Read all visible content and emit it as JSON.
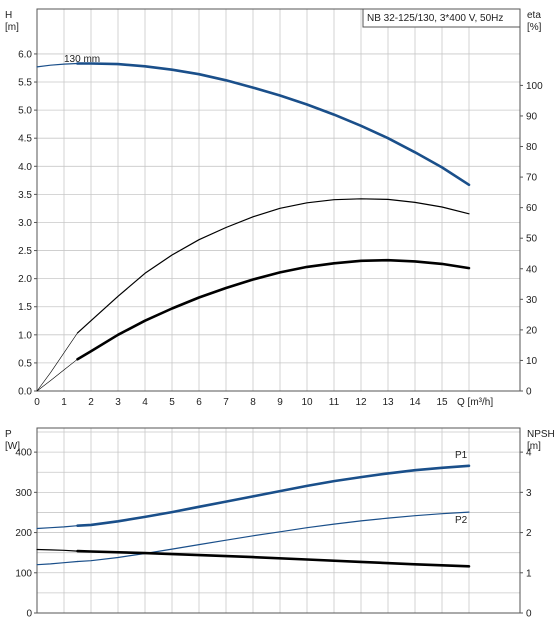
{
  "chart_data": [
    {
      "type": "line",
      "title": "NB 32-125/130, 3*400 V, 50Hz",
      "xlabel": "Q [m³/h]",
      "ylabel": "H [m]",
      "y2label": "eta [%]",
      "ylabel_parts": [
        "H",
        "[m]"
      ],
      "y2label_parts": [
        "eta",
        "[%]"
      ],
      "xlim": [
        0,
        17
      ],
      "ylim": [
        0,
        6.8
      ],
      "y2lim": [
        0,
        125
      ],
      "xticks": [
        "0",
        "1",
        "2",
        "3",
        "4",
        "5",
        "6",
        "7",
        "8",
        "9",
        "10",
        "11",
        "12",
        "13",
        "14",
        "15"
      ],
      "yticks": [
        "0.0",
        "0.5",
        "1.0",
        "1.5",
        "2.0",
        "2.5",
        "3.0",
        "3.5",
        "4.0",
        "4.5",
        "5.0",
        "5.5",
        "6.0"
      ],
      "y2ticks": [
        "0",
        "10",
        "20",
        "30",
        "40",
        "50",
        "60",
        "70",
        "80",
        "90",
        "100"
      ],
      "grid": true,
      "annotations": [
        {
          "text": "130 mm",
          "x": 1.0,
          "y": 5.82
        }
      ],
      "series": [
        {
          "axis": "y",
          "color": "#1a4f8a",
          "style": "thick",
          "x": [
            1.5,
            2,
            3,
            4,
            5,
            6,
            7,
            8,
            9,
            10,
            11,
            12,
            13,
            14,
            15,
            16
          ],
          "y": [
            5.83,
            5.83,
            5.82,
            5.78,
            5.72,
            5.64,
            5.53,
            5.4,
            5.26,
            5.1,
            4.92,
            4.72,
            4.5,
            4.25,
            3.98,
            3.67
          ]
        },
        {
          "axis": "y",
          "color": "#1a4f8a",
          "style": "thin",
          "x": [
            0,
            0.5,
            1,
            1.5
          ],
          "y": [
            5.77,
            5.8,
            5.82,
            5.83
          ]
        },
        {
          "axis": "y2",
          "color": "#000000",
          "style": "thin",
          "x": [
            1.5,
            2,
            3,
            4,
            5,
            6,
            7,
            8,
            9,
            10,
            11,
            12,
            13,
            14,
            15,
            16
          ],
          "y": [
            19,
            23,
            31,
            38.5,
            44.5,
            49.5,
            53.5,
            57,
            59.8,
            61.6,
            62.6,
            62.9,
            62.7,
            61.7,
            60.2,
            58
          ]
        },
        {
          "axis": "y2",
          "color": "#000000",
          "style": "hair",
          "x": [
            0,
            0.5,
            1,
            1.5
          ],
          "y": [
            0,
            6,
            12.5,
            19
          ]
        },
        {
          "axis": "y2",
          "color": "#000000",
          "style": "thick",
          "x": [
            1.5,
            2,
            3,
            4,
            5,
            6,
            7,
            8,
            9,
            10,
            11,
            12,
            13,
            14,
            15,
            16
          ],
          "y": [
            10.4,
            13,
            18.4,
            23,
            27,
            30.6,
            33.7,
            36.5,
            38.8,
            40.6,
            41.8,
            42.6,
            42.8,
            42.4,
            41.6,
            40.2
          ]
        },
        {
          "axis": "y2",
          "color": "#000000",
          "style": "hair",
          "x": [
            0,
            0.5,
            1,
            1.5
          ],
          "y": [
            0,
            3.4,
            6.9,
            10.4
          ]
        }
      ]
    },
    {
      "type": "line",
      "xlabel": "",
      "ylabel": "P [W]",
      "y2label": "NPSH [m]",
      "ylabel_parts": [
        "P",
        "[W]"
      ],
      "y2label_parts": [
        "NPSH",
        "[m]"
      ],
      "xlim": [
        0,
        17
      ],
      "ylim": [
        0,
        460
      ],
      "y2lim": [
        0,
        4.6
      ],
      "yticks": [
        "0",
        "100",
        "200",
        "300",
        "400"
      ],
      "y2ticks": [
        "0",
        "1",
        "2",
        "3",
        "4"
      ],
      "grid": true,
      "series": [
        {
          "name": "P1",
          "axis": "y",
          "color": "#1a4f8a",
          "style": "thick",
          "x": [
            1.5,
            2,
            3,
            4,
            5,
            6,
            7,
            8,
            9,
            10,
            11,
            12,
            13,
            14,
            15,
            16
          ],
          "y": [
            217,
            219,
            228,
            239,
            251,
            264,
            277,
            290,
            303,
            316,
            328,
            338,
            347,
            355,
            361,
            366
          ]
        },
        {
          "axis": "y",
          "color": "#1a4f8a",
          "style": "thin",
          "x": [
            0,
            0.5,
            1,
            1.5
          ],
          "y": [
            210,
            212,
            214,
            217
          ]
        },
        {
          "name": "P2",
          "axis": "y",
          "color": "#1a4f8a",
          "style": "thin",
          "x": [
            1.5,
            2,
            3,
            4,
            5,
            6,
            7,
            8,
            9,
            10,
            11,
            12,
            13,
            14,
            15,
            16
          ],
          "y": [
            128,
            130,
            138,
            148,
            159,
            170,
            181,
            192,
            202,
            212,
            221,
            229,
            236,
            242,
            247,
            251
          ]
        },
        {
          "axis": "y",
          "color": "#1a4f8a",
          "style": "thin",
          "x": [
            0,
            0.5,
            1,
            1.5
          ],
          "y": [
            120,
            122,
            125,
            128
          ]
        },
        {
          "axis": "y2",
          "color": "#000000",
          "style": "thick",
          "x": [
            1.5,
            2,
            4,
            6,
            8,
            10,
            12,
            14,
            16
          ],
          "y": [
            1.54,
            1.53,
            1.49,
            1.44,
            1.39,
            1.33,
            1.27,
            1.21,
            1.16
          ]
        },
        {
          "axis": "y2",
          "color": "#000000",
          "style": "thin",
          "x": [
            0,
            0.5,
            1,
            1.5
          ],
          "y": [
            1.58,
            1.57,
            1.56,
            1.54
          ]
        }
      ]
    }
  ]
}
